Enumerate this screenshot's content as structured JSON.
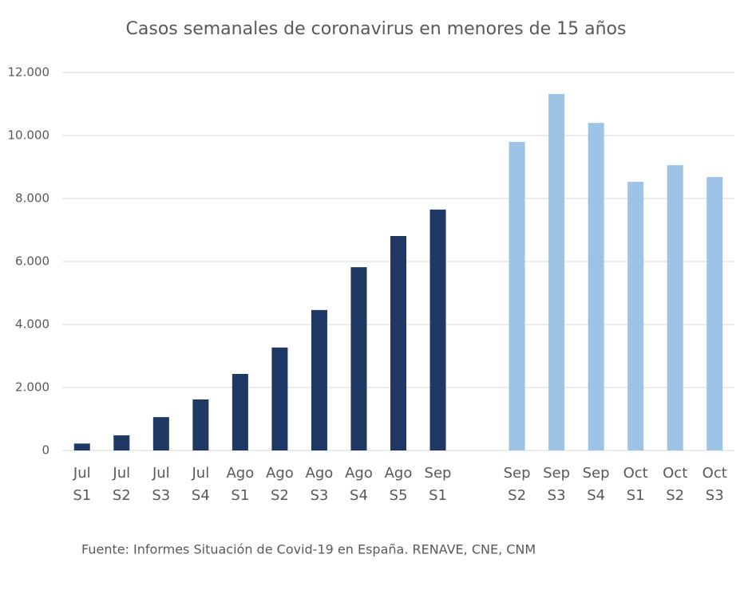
{
  "chart_data": {
    "type": "bar",
    "title": "Casos semanales de coronavirus en menores de 15 años",
    "note": "Fuente: Informes Situación de Covid-19 en España. RENAVE, CNE, CNM",
    "categories": [
      [
        "Jul",
        "S1"
      ],
      [
        "Jul",
        "S2"
      ],
      [
        "Jul",
        "S3"
      ],
      [
        "Jul",
        "S4"
      ],
      [
        "Ago",
        "S1"
      ],
      [
        "Ago",
        "S2"
      ],
      [
        "Ago",
        "S3"
      ],
      [
        "Ago",
        "S4"
      ],
      [
        "Ago",
        "S5"
      ],
      [
        "Sep",
        "S1"
      ],
      null,
      [
        "Sep",
        "S2"
      ],
      [
        "Sep",
        "S3"
      ],
      [
        "Sep",
        "S4"
      ],
      [
        "Oct",
        "S1"
      ],
      [
        "Oct",
        "S2"
      ],
      [
        "Oct",
        "S3"
      ]
    ],
    "series": [
      {
        "color": "#1f3864",
        "values": [
          220,
          480,
          1060,
          1620,
          2430,
          3270,
          4460,
          5820,
          6810,
          7650,
          null,
          null,
          null,
          null,
          null,
          null,
          null
        ]
      },
      {
        "color": "#9dc3e6",
        "values": [
          null,
          null,
          null,
          null,
          null,
          null,
          null,
          null,
          null,
          null,
          null,
          9800,
          11320,
          10400,
          8530,
          9060,
          8680
        ]
      }
    ],
    "ylim": [
      0,
      12000
    ],
    "yticks": [
      0,
      {
        "value": 2000,
        "label": "2.000"
      },
      {
        "value": 4000,
        "label": "4.000"
      },
      {
        "value": 6000,
        "label": "6.000"
      },
      {
        "value": 8000,
        "label": "8.000"
      },
      {
        "value": 10000,
        "label": "10.000"
      },
      {
        "value": 12000,
        "label": "12.000"
      }
    ],
    "grid": true
  }
}
